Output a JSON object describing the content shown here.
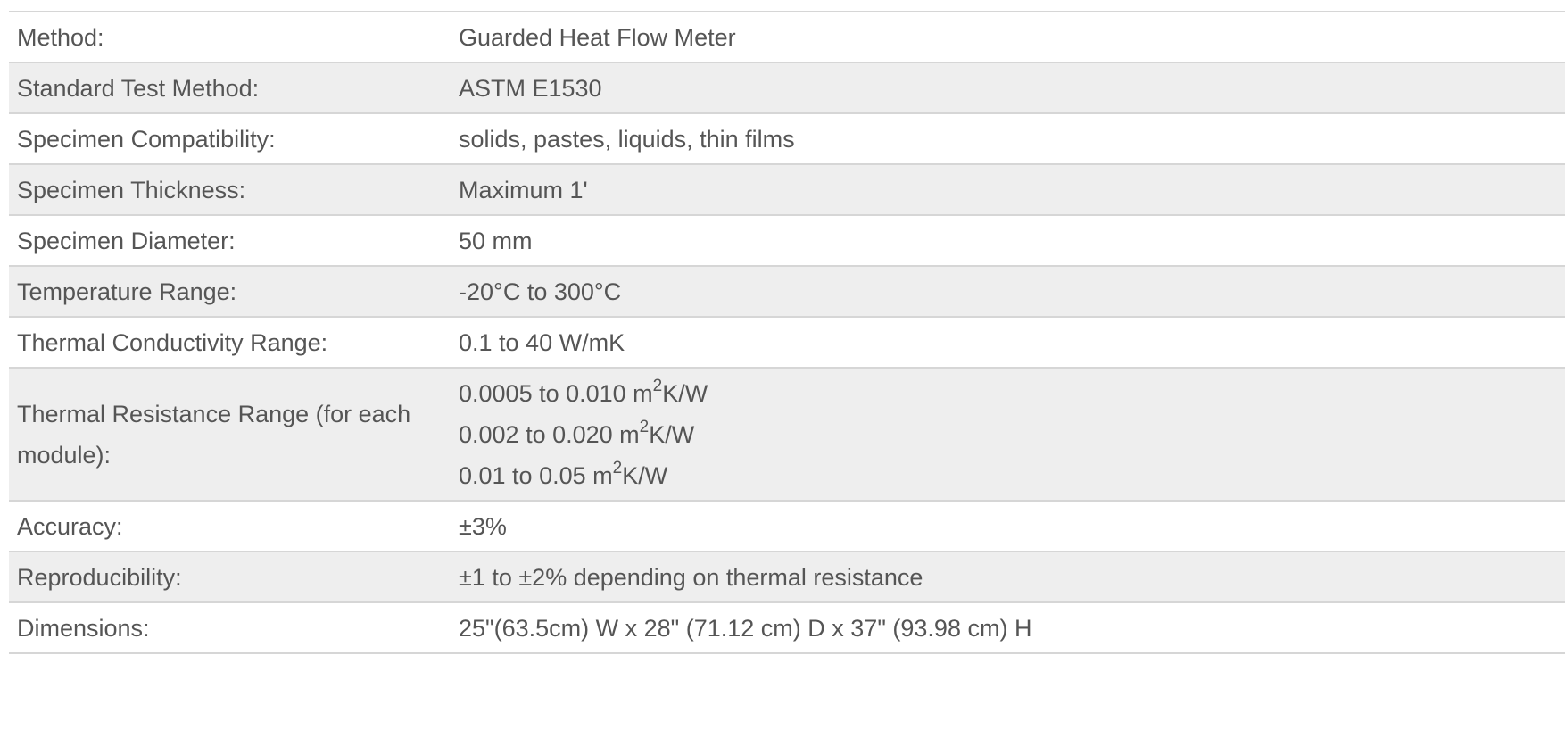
{
  "specs": [
    {
      "label": "Method:",
      "value": "Guarded Heat Flow Meter"
    },
    {
      "label": "Standard Test Method:",
      "value": "ASTM E1530"
    },
    {
      "label": "Specimen Compatibility:",
      "value": "solids, pastes, liquids, thin films"
    },
    {
      "label": "Specimen Thickness:",
      "value": "Maximum 1'"
    },
    {
      "label": "Specimen Diameter:",
      "value": "50 mm"
    },
    {
      "label": "Temperature Range:",
      "value": "-20°C to 300°C"
    },
    {
      "label": "Thermal Conductivity Range:",
      "value": "0.1 to 40 W/mK"
    },
    {
      "label": "Thermal Resistance Range (for each module):",
      "lines": [
        {
          "pre": "0.0005 to 0.010 m",
          "sup": "2",
          "post": "K/W"
        },
        {
          "pre": "0.002 to 0.020 m",
          "sup": "2",
          "post": "K/W"
        },
        {
          "pre": "0.01 to 0.05 m",
          "sup": "2",
          "post": "K/W"
        }
      ]
    },
    {
      "label": "Accuracy:",
      "value": "±3%"
    },
    {
      "label": "Reproducibility:",
      "value": "±1 to ±2% depending on thermal resistance"
    },
    {
      "label": "Dimensions:",
      "value": "25\"(63.5cm) W x 28\" (71.12 cm) D x 37\" (93.98 cm) H"
    }
  ]
}
